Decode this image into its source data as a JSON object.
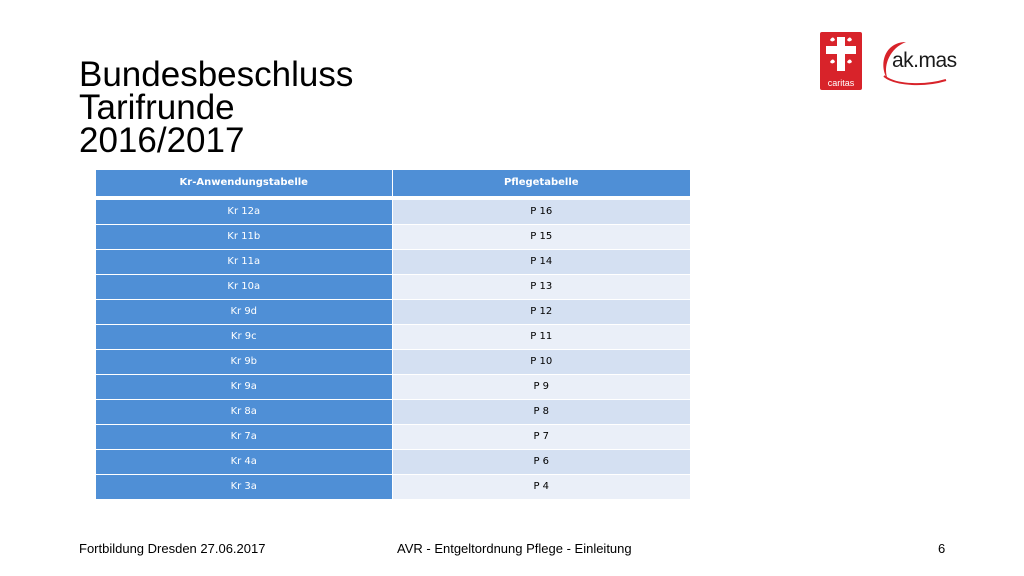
{
  "slide": {
    "title_lines": [
      "Bundesbeschluss",
      "Tarifrunde",
      "2016/2017"
    ]
  },
  "logos": {
    "caritas_text": "caritas",
    "akmas_text": "ak.mas"
  },
  "table": {
    "headers": [
      "Kr-Anwendungstabelle",
      "Pflegetabelle"
    ],
    "rows": [
      [
        "Kr 12a",
        "P 16"
      ],
      [
        "Kr 11b",
        "P 15"
      ],
      [
        "Kr 11a",
        "P 14"
      ],
      [
        "Kr 10a",
        "P 13"
      ],
      [
        "Kr 9d",
        "P 12"
      ],
      [
        "Kr 9c",
        "P 11"
      ],
      [
        "Kr 9b",
        "P 10"
      ],
      [
        "Kr 9a",
        "P 9"
      ],
      [
        "Kr 8a",
        "P 8"
      ],
      [
        "Kr 7a",
        "P 7"
      ],
      [
        "Kr 4a",
        "P 6"
      ],
      [
        "Kr 3a",
        "P 4"
      ]
    ]
  },
  "footer": {
    "left": "Fortbildung Dresden 27.06.2017",
    "center": "AVR - Entgeltordnung Pflege - Einleitung",
    "page": "6"
  },
  "colors": {
    "table_header": "#4f8fd6",
    "row_light": "#eaeff8",
    "row_dark": "#d4e0f2",
    "caritas_red": "#d8232a",
    "akmas_red": "#d8232a"
  }
}
